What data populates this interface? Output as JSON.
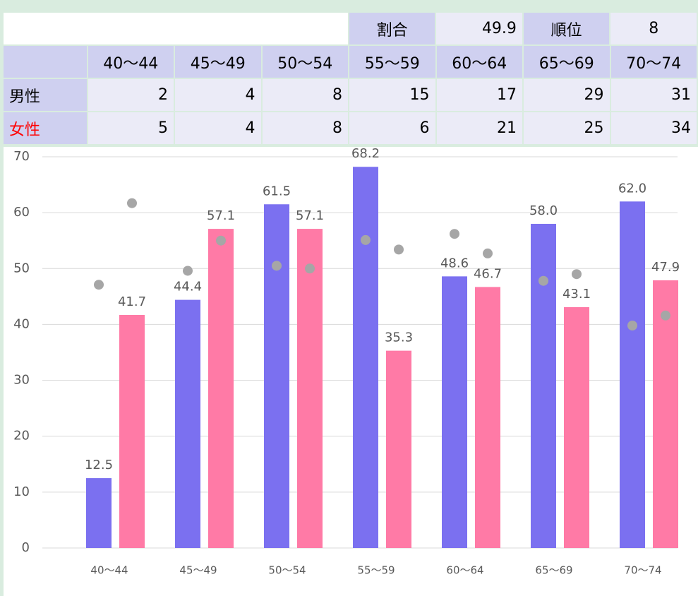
{
  "table": {
    "summary": [
      "割合",
      "49.9",
      "順位",
      "8"
    ],
    "header": [
      "40〜44",
      "45〜49",
      "50〜54",
      "55〜59",
      "60〜64",
      "65〜69",
      "70〜74"
    ],
    "rows": [
      {
        "label": "男性",
        "values": [
          2,
          4,
          8,
          15,
          17,
          29,
          31
        ]
      },
      {
        "label": "女性",
        "values": [
          5,
          4,
          8,
          6,
          21,
          25,
          34
        ]
      }
    ]
  },
  "chart_data": {
    "type": "bar",
    "categories": [
      "40〜44",
      "45〜49",
      "50〜54",
      "55〜59",
      "60〜64",
      "65〜69",
      "70〜74"
    ],
    "series": [
      {
        "color": "#7b70f0",
        "values": [
          12.5,
          44.4,
          61.5,
          68.2,
          48.6,
          58.0,
          62.0
        ],
        "value_labels": [
          "12.5",
          "44.4",
          "61.5",
          "68.2",
          "48.6",
          "58.0",
          "62.0"
        ]
      },
      {
        "color": "#ff7aa6",
        "values": [
          41.7,
          57.1,
          57.1,
          35.3,
          46.7,
          43.1,
          47.9
        ],
        "value_labels": [
          "41.7",
          "57.1",
          "57.1",
          "35.3",
          "46.7",
          "43.1",
          "47.9"
        ]
      },
      {
        "type": "scatter",
        "color": "#a6a6a6",
        "values": [
          47.1,
          49.6,
          50.5,
          55.1,
          56.2,
          47.8,
          39.8
        ]
      },
      {
        "type": "scatter",
        "color": "#a6a6a6",
        "values": [
          61.7,
          55.0,
          50.0,
          53.4,
          52.7,
          49.0,
          41.6
        ]
      }
    ],
    "ylim": [
      0,
      70
    ],
    "yticks": [
      0,
      10,
      20,
      30,
      40,
      50,
      60,
      70
    ],
    "grid": true
  }
}
